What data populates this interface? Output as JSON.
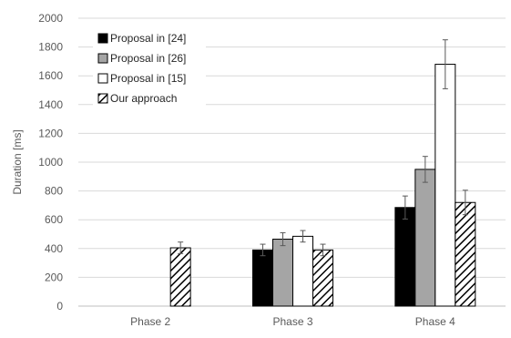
{
  "chart_data": {
    "type": "bar",
    "title": "",
    "xlabel": "",
    "ylabel": "Duration [ms]",
    "ylim": [
      0,
      2000
    ],
    "yticks": [
      0,
      200,
      400,
      600,
      800,
      1000,
      1200,
      1400,
      1600,
      1800,
      2000
    ],
    "grid": true,
    "legend_position": "top-left",
    "categories": [
      "Phase 2",
      "Phase 3",
      "Phase 4"
    ],
    "series": [
      {
        "name": "Proposal in [24]",
        "values": [
          0,
          390,
          685
        ],
        "errors": [
          0,
          40,
          80
        ],
        "fill": "black"
      },
      {
        "name": "Proposal in [26]",
        "values": [
          0,
          465,
          950
        ],
        "errors": [
          0,
          45,
          90
        ],
        "fill": "gray"
      },
      {
        "name": "Proposal in [15]",
        "values": [
          0,
          485,
          1680
        ],
        "errors": [
          0,
          40,
          170
        ],
        "fill": "white"
      },
      {
        "name": "Our approach",
        "values": [
          405,
          390,
          720
        ],
        "errors": [
          40,
          40,
          85
        ],
        "fill": "hatch"
      }
    ],
    "colors": {
      "black": "#000000",
      "gray": "#a5a5a5",
      "white": "#ffffff",
      "hatch_line": "#000000",
      "grid": "#d9d9d9",
      "axis": "#bfbfbf",
      "error_bar": "#595959"
    }
  }
}
